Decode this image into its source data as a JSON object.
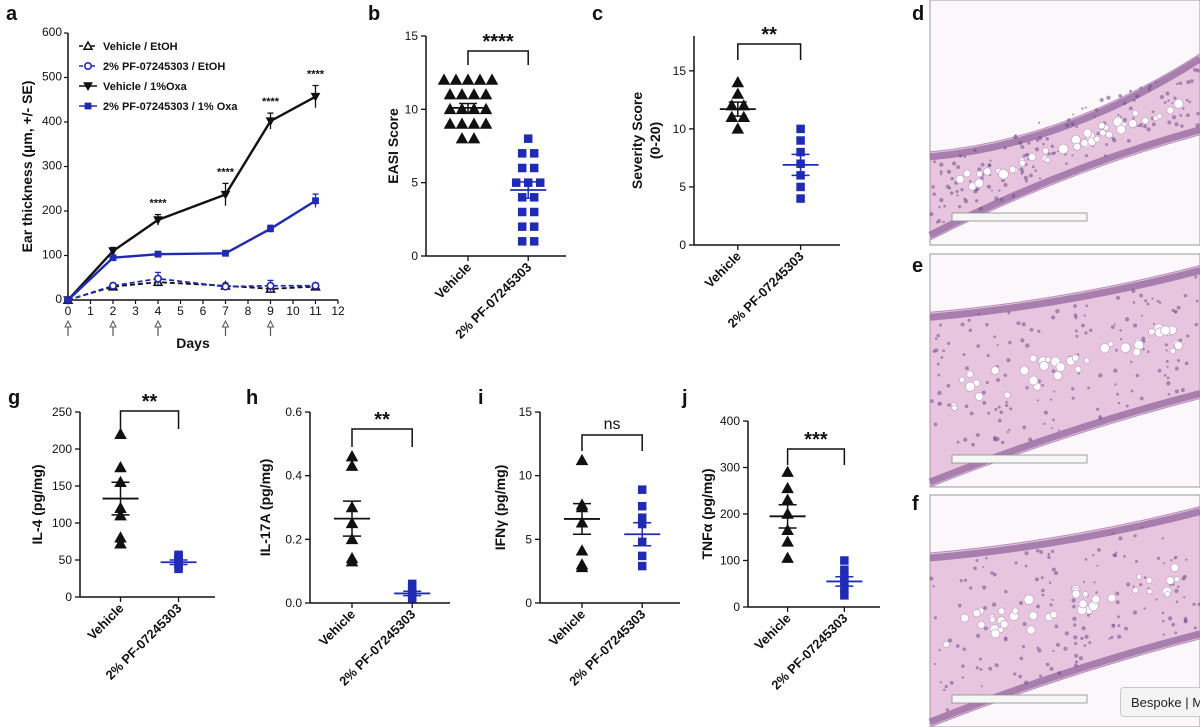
{
  "figure": {
    "panels": [
      "a",
      "b",
      "c",
      "d",
      "e",
      "f",
      "g",
      "h",
      "i",
      "j"
    ]
  },
  "bespoke_button": {
    "label": "Bespoke | M"
  },
  "colors": {
    "black": "#111111",
    "blue": "#1f2bb5",
    "hist_purple": "#b38db8",
    "hist_pink": "#e8c5de"
  },
  "chart_data": [
    {
      "panel": "a",
      "type": "line",
      "ylabel": "Ear thickness (µm, +/- SE)",
      "xlabel": "Days",
      "xlim": [
        0,
        12
      ],
      "ylim": [
        0,
        600
      ],
      "xticks": [
        "0",
        "1",
        "2",
        "3",
        "4",
        "5",
        "6",
        "7",
        "8",
        "9",
        "10",
        "11",
        "12"
      ],
      "yticks": [
        "0",
        "100",
        "200",
        "300",
        "400",
        "500",
        "600"
      ],
      "arrow_days": [
        0,
        2,
        4,
        7,
        9
      ],
      "series": [
        {
          "name": "Vehicle / EtOH",
          "x": [
            0,
            2,
            4,
            7,
            9,
            11
          ],
          "y": [
            0,
            30,
            40,
            32,
            25,
            30
          ],
          "err": [
            0,
            6,
            8,
            6,
            8,
            6
          ],
          "marker": "open-triangle",
          "color": "#111111",
          "dashed": true
        },
        {
          "name": "2% PF-07245303 / EtOH",
          "x": [
            0,
            2,
            4,
            7,
            9,
            11
          ],
          "y": [
            0,
            32,
            48,
            30,
            32,
            32
          ],
          "err": [
            0,
            6,
            14,
            6,
            12,
            6
          ],
          "marker": "open-circle",
          "color": "#1f2bb5",
          "dashed": true
        },
        {
          "name": "Vehicle / 1%Oxa",
          "x": [
            0,
            2,
            4,
            7,
            9,
            11
          ],
          "y": [
            0,
            110,
            180,
            237,
            402,
            457
          ],
          "err": [
            0,
            8,
            12,
            25,
            18,
            25
          ],
          "marker": "filled-inverted-triangle",
          "color": "#111111",
          "dashed": false
        },
        {
          "name": "2% PF-07245303 / 1% Oxa",
          "x": [
            0,
            2,
            4,
            7,
            9,
            11
          ],
          "y": [
            0,
            95,
            103,
            105,
            160,
            223
          ],
          "err": [
            0,
            6,
            6,
            6,
            8,
            15
          ],
          "marker": "filled-square",
          "color": "#1f2bb5",
          "dashed": false
        }
      ],
      "annotations": [
        {
          "x": 4,
          "text": "****"
        },
        {
          "x": 7,
          "text": "****"
        },
        {
          "x": 9,
          "text": "****"
        },
        {
          "x": 11,
          "text": "****"
        }
      ]
    },
    {
      "panel": "b",
      "type": "scatter",
      "ylabel": "EASI Score",
      "ylim": [
        0,
        15
      ],
      "yticks": [
        "0",
        "5",
        "10",
        "15"
      ],
      "categories": [
        "Vehicle",
        "2% PF-07245303"
      ],
      "groups": [
        {
          "name": "Vehicle",
          "values": [
            12,
            12,
            12,
            12,
            12,
            11,
            11,
            11,
            11,
            10,
            10,
            10,
            10,
            9,
            9,
            9,
            9,
            8,
            8
          ],
          "mean": 10.1,
          "sem": 0.3,
          "marker": "triangle",
          "color": "#111111"
        },
        {
          "name": "2% PF-07245303",
          "values": [
            8,
            7,
            7,
            6,
            6,
            5,
            5,
            5,
            4,
            4,
            3,
            3,
            2,
            2,
            1,
            1
          ],
          "mean": 4.5,
          "sem": 0.55,
          "marker": "square",
          "color": "#1f2bb5"
        }
      ],
      "significance": "****"
    },
    {
      "panel": "c",
      "type": "scatter",
      "ylabel": "Severity Score",
      "ylabel2": "(0-20)",
      "ylim": [
        0,
        18
      ],
      "yticks": [
        "0",
        "5",
        "10",
        "15"
      ],
      "categories": [
        "Vehicle",
        "2% PF-07245303"
      ],
      "groups": [
        {
          "name": "Vehicle",
          "values": [
            14,
            13,
            12,
            12,
            11,
            11,
            10
          ],
          "mean": 11.7,
          "sem": 0.6,
          "marker": "triangle",
          "color": "#111111"
        },
        {
          "name": "2% PF-07245303",
          "values": [
            10,
            9,
            8,
            7,
            6,
            5,
            4
          ],
          "mean": 6.9,
          "sem": 0.9,
          "marker": "square",
          "color": "#1f2bb5"
        }
      ],
      "significance": "**"
    },
    {
      "panel": "g",
      "type": "scatter",
      "ylabel": "IL-4 (pg/mg)",
      "ylim": [
        0,
        250
      ],
      "yticks": [
        "0",
        "50",
        "100",
        "150",
        "200",
        "250"
      ],
      "categories": [
        "Vehicle",
        "2% PF-07245303"
      ],
      "groups": [
        {
          "name": "Vehicle",
          "values": [
            220,
            175,
            155,
            120,
            110,
            80,
            72
          ],
          "mean": 133,
          "sem": 22,
          "marker": "triangle",
          "color": "#111111"
        },
        {
          "name": "2% PF-07245303",
          "values": [
            57,
            55,
            52,
            48,
            45,
            42,
            38
          ],
          "mean": 47,
          "sem": 3,
          "marker": "square",
          "color": "#1f2bb5"
        }
      ],
      "significance": "**"
    },
    {
      "panel": "h",
      "type": "scatter",
      "ylabel": "IL-17A (pg/mg)",
      "ylim": [
        0,
        0.6
      ],
      "yticks": [
        "0.0",
        "0.2",
        "0.4",
        "0.6"
      ],
      "categories": [
        "Vehicle",
        "2% PF-07245303"
      ],
      "groups": [
        {
          "name": "Vehicle",
          "values": [
            0.46,
            0.43,
            0.3,
            0.25,
            0.2,
            0.14,
            0.13
          ],
          "mean": 0.265,
          "sem": 0.055,
          "marker": "triangle",
          "color": "#111111"
        },
        {
          "name": "2% PF-07245303",
          "values": [
            0.06,
            0.05,
            0.04,
            0.03,
            0.02,
            0.015
          ],
          "mean": 0.03,
          "sem": 0.007,
          "marker": "square",
          "color": "#1f2bb5"
        }
      ],
      "significance": "**"
    },
    {
      "panel": "i",
      "type": "scatter",
      "ylabel": "IFNγ (pg/mg)",
      "ylim": [
        0,
        15
      ],
      "yticks": [
        "0",
        "5",
        "10",
        "15"
      ],
      "categories": [
        "Vehicle",
        "2% PF-07245303"
      ],
      "groups": [
        {
          "name": "Vehicle",
          "values": [
            11.2,
            7.7,
            7.5,
            6.3,
            4.1,
            3.0,
            2.8
          ],
          "mean": 6.6,
          "sem": 1.2,
          "marker": "triangle",
          "color": "#111111"
        },
        {
          "name": "2% PF-07245303",
          "values": [
            8.9,
            7.6,
            6.7,
            6.2,
            4.8,
            3.7,
            2.9
          ],
          "mean": 5.4,
          "sem": 0.9,
          "marker": "square",
          "color": "#1f2bb5"
        }
      ],
      "significance": "ns"
    },
    {
      "panel": "j",
      "type": "scatter",
      "ylabel": "TNFα (pg/mg)",
      "ylim": [
        0,
        400
      ],
      "yticks": [
        "0",
        "100",
        "200",
        "300",
        "400"
      ],
      "categories": [
        "Vehicle",
        "2% PF-07245303"
      ],
      "groups": [
        {
          "name": "Vehicle",
          "values": [
            290,
            255,
            230,
            200,
            165,
            140,
            105
          ],
          "mean": 195,
          "sem": 25,
          "marker": "triangle",
          "color": "#111111"
        },
        {
          "name": "2% PF-07245303",
          "values": [
            100,
            80,
            65,
            55,
            40,
            25
          ],
          "mean": 55,
          "sem": 10,
          "marker": "square",
          "color": "#1f2bb5"
        }
      ],
      "significance": "***"
    }
  ]
}
